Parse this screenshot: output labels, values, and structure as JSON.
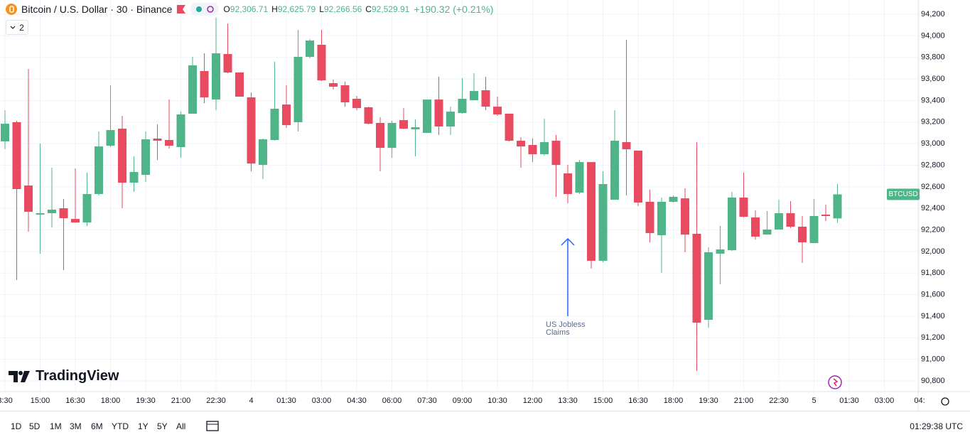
{
  "header": {
    "symbol": "Bitcoin / U.S. Dollar · 30 · Binance",
    "ohlc": [
      {
        "label": "O",
        "value": "92,306.71"
      },
      {
        "label": "H",
        "value": "92,625.79"
      },
      {
        "label": "L",
        "value": "92,266.56"
      },
      {
        "label": "C",
        "value": "92,529.91"
      }
    ],
    "change": "+190.32 (+0.21%)",
    "indicators": "2"
  },
  "chart_data": {
    "type": "candlestick",
    "up_color": "#4fb487",
    "down_color": "#e84a5f",
    "grid": true,
    "categories": [
      "3:30",
      null,
      null,
      "15:00",
      null,
      null,
      "16:30",
      null,
      null,
      "18:00",
      null,
      null,
      "19:30",
      null,
      null,
      "21:00",
      null,
      null,
      "22:30",
      null,
      null,
      "4",
      null,
      null,
      "01:30",
      null,
      null,
      "03:00",
      null,
      null,
      "04:30",
      null,
      null,
      "06:00",
      null,
      null,
      "07:30",
      null,
      null,
      "09:00",
      null,
      null,
      "10:30",
      null,
      null,
      "12:00",
      null,
      null,
      "13:30",
      null,
      null,
      "15:00",
      null,
      null,
      "16:30",
      null,
      null,
      "18:00",
      null,
      null,
      "19:30",
      null,
      null,
      "21:00",
      null,
      null,
      "22:30",
      null,
      null,
      "5",
      null,
      null,
      "01:30",
      null,
      null,
      "03:00",
      null,
      null,
      "04:"
    ],
    "open": [
      93021,
      93199,
      92612,
      92342,
      92355,
      92401,
      92302,
      92269,
      92533,
      92981,
      93139,
      92638,
      92711,
      93047,
      93034,
      92968,
      93278,
      93673,
      93409,
      93831,
      93660,
      93429,
      92803,
      93034,
      93363,
      93199,
      93805,
      93917,
      93561,
      93541,
      93416,
      93337,
      93192,
      92961,
      93218,
      93133,
      93100,
      93409,
      93159,
      93284,
      93403,
      93495,
      93343,
      93278,
      93027,
      92988,
      92902,
      93027,
      92724,
      92546,
      92829,
      91914,
      92480,
      93014,
      92935,
      92461,
      92151,
      92461,
      92493,
      92164,
      91367,
      91980,
      92012,
      92500,
      92316,
      92157,
      92204,
      92355,
      92230,
      92078,
      92342,
      92306.71,
      null,
      null,
      null,
      null,
      null,
      null,
      null
    ],
    "high": [
      93310,
      93212,
      93693,
      93001,
      92777,
      92487,
      92770,
      92731,
      93113,
      93541,
      93258,
      92882,
      93113,
      93179,
      93409,
      93297,
      93805,
      93838,
      94167,
      94114,
      93660,
      93475,
      93047,
      93759,
      93541,
      94055,
      93969,
      94055,
      93594,
      93574,
      93442,
      93343,
      93245,
      93212,
      93330,
      93225,
      93409,
      93620,
      93343,
      93607,
      93653,
      93620,
      93436,
      93278,
      93060,
      93047,
      93231,
      93080,
      92803,
      92849,
      92829,
      92744,
      93310,
      93963,
      92935,
      92573,
      92500,
      92520,
      92586,
      93014,
      92039,
      92236,
      92553,
      92731,
      92381,
      92375,
      92480,
      92467,
      92329,
      92487,
      92434,
      92625.79,
      null,
      null,
      null,
      null,
      null,
      null,
      null
    ],
    "low": [
      92948,
      91736,
      92184,
      91980,
      92223,
      91828,
      92269,
      92236,
      92520,
      92968,
      92401,
      92553,
      92645,
      92849,
      92955,
      92869,
      93278,
      93376,
      93310,
      93653,
      93436,
      92744,
      92671,
      93027,
      93146,
      93113,
      93791,
      93581,
      93502,
      93343,
      93310,
      93179,
      92744,
      92869,
      93133,
      92882,
      93100,
      93080,
      93080,
      93278,
      93403,
      93310,
      93258,
      93021,
      92777,
      92829,
      92889,
      92507,
      92447,
      92533,
      91841,
      91900,
      92480,
      92520,
      92421,
      92085,
      91802,
      92454,
      91993,
      90892,
      91294,
      91696,
      92006,
      92316,
      92111,
      92157,
      92204,
      92217,
      91894,
      92078,
      92283,
      92266.56,
      null,
      null,
      null,
      null,
      null,
      null,
      null
    ],
    "close": [
      93185,
      92579,
      92368,
      92355,
      92388,
      92309,
      92269,
      92533,
      92974,
      93126,
      92638,
      92737,
      93040,
      93027,
      92981,
      93271,
      93726,
      93429,
      93838,
      93660,
      93436,
      92816,
      93040,
      93324,
      93172,
      93805,
      93956,
      93587,
      93528,
      93383,
      93330,
      93185,
      92961,
      93192,
      93139,
      93152,
      93409,
      93159,
      93297,
      93416,
      93488,
      93343,
      93271,
      93027,
      92974,
      92902,
      93014,
      92803,
      92533,
      92829,
      91914,
      92625,
      93027,
      92948,
      92454,
      92171,
      92461,
      92507,
      92157,
      91340,
      91993,
      92019,
      92500,
      92322,
      92138,
      92204,
      92355,
      92230,
      92085,
      92329,
      92329,
      92529.91,
      null,
      null,
      null,
      null,
      null,
      null,
      null
    ],
    "ylim": [
      90708,
      94332
    ],
    "yticks": [
      {
        "value": 94200,
        "label": "94,200"
      },
      {
        "value": 94000,
        "label": "94,000"
      },
      {
        "value": 93800,
        "label": "93,800"
      },
      {
        "value": 93600,
        "label": "93,600"
      },
      {
        "value": 93400,
        "label": "93,400"
      },
      {
        "value": 93200,
        "label": "93,200"
      },
      {
        "value": 93000,
        "label": "93,000"
      },
      {
        "value": 92800,
        "label": "92,800"
      },
      {
        "value": 92600,
        "label": "92,600"
      },
      {
        "value": 92400,
        "label": "92,400"
      },
      {
        "value": 92200,
        "label": "92,200"
      },
      {
        "value": 92000,
        "label": "92,000"
      },
      {
        "value": 91800,
        "label": "91,800"
      },
      {
        "value": 91600,
        "label": "91,600"
      },
      {
        "value": 91400,
        "label": "91,400"
      },
      {
        "value": 91200,
        "label": "91,200"
      },
      {
        "value": 91000,
        "label": "91,000"
      },
      {
        "value": 90800,
        "label": "90,800"
      }
    ],
    "annotation": "US Jobless Claims",
    "price_label": "BTCUSD",
    "watermark": "TradingView"
  },
  "toolbar": {
    "ranges": [
      "1D",
      "5D",
      "1M",
      "3M",
      "6M",
      "YTD",
      "1Y",
      "5Y",
      "All"
    ],
    "clock": "01:29:38 UTC"
  }
}
